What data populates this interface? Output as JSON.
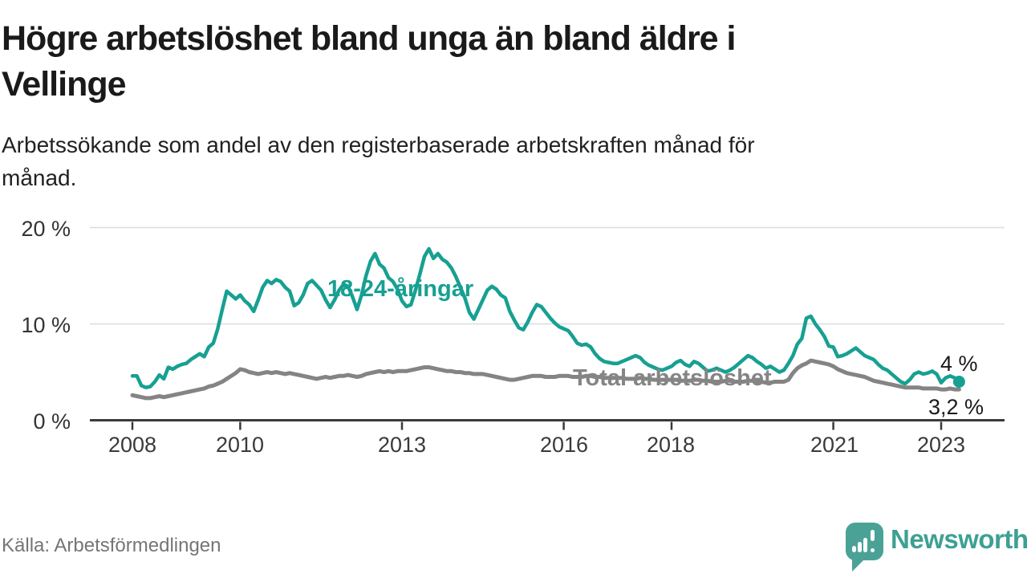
{
  "title": {
    "line1": "Högre arbetslöshet bland unga än bland äldre i",
    "line2": "Vellinge"
  },
  "subtitle": {
    "line1": "Arbetssökande som andel av den registerbaserade arbetskraften månad för",
    "line2": "månad."
  },
  "source": "Källa: Arbetsförmedlingen",
  "logo": {
    "text": "Newsworthy",
    "icon": "speech-bubble-with-bar-chart-and-exclamation"
  },
  "colors": {
    "youth_line": "#17a092",
    "total_line": "#848484",
    "axis": "#3a3a3a",
    "grid": "#dcdcdc",
    "end_label": "#1a1a1a",
    "source_text": "#757575",
    "logo_teal": "#4aa296"
  },
  "chart_data": {
    "type": "line",
    "title": "Högre arbetslöshet bland unga än bland äldre i Vellinge",
    "subtitle": "Arbetssökande som andel av den registerbaserade arbetskraften månad för månad.",
    "x_start": "2008-01",
    "frequency": "monthly",
    "x_end": "2023-05",
    "y_unit": "%",
    "ylim": [
      0,
      21.5
    ],
    "grid": "horizontal",
    "y_ticks": [
      "0 %",
      "10 %",
      "20 %"
    ],
    "y_tick_values": [
      0,
      10,
      20
    ],
    "x_tick_labels": [
      "2008",
      "2010",
      "2013",
      "2016",
      "2018",
      "2021",
      "2023"
    ],
    "x_tick_years": [
      2008,
      2010,
      2013,
      2016,
      2018,
      2021,
      2023
    ],
    "legend_position": "inline-labels",
    "series": [
      {
        "name": "18-24-åringar",
        "color": "#17a092",
        "end_label": "4 %",
        "end_dot": true,
        "values": [
          4.6,
          4.6,
          3.6,
          3.4,
          3.5,
          4.0,
          4.7,
          4.3,
          5.5,
          5.3,
          5.6,
          5.8,
          5.9,
          6.3,
          6.6,
          6.9,
          6.6,
          7.6,
          8.0,
          9.5,
          11.5,
          13.4,
          13.0,
          12.6,
          13.0,
          12.4,
          12.0,
          11.3,
          12.5,
          13.8,
          14.5,
          14.2,
          14.6,
          14.4,
          13.8,
          13.4,
          11.9,
          12.2,
          13.0,
          14.2,
          14.5,
          14.0,
          13.5,
          12.5,
          11.7,
          12.5,
          13.5,
          14.1,
          13.9,
          12.8,
          11.5,
          13.0,
          15.0,
          16.5,
          17.3,
          16.2,
          15.8,
          14.8,
          14.4,
          13.6,
          12.4,
          11.8,
          12.0,
          13.5,
          15.2,
          17.0,
          17.8,
          16.8,
          17.3,
          16.7,
          16.4,
          15.8,
          14.9,
          13.8,
          12.7,
          11.2,
          10.5,
          11.5,
          12.5,
          13.5,
          13.9,
          13.6,
          13.0,
          12.7,
          11.3,
          10.4,
          9.6,
          9.4,
          10.2,
          11.2,
          12.0,
          11.8,
          11.2,
          10.6,
          10.1,
          9.7,
          9.5,
          9.3,
          8.7,
          8.0,
          7.8,
          7.9,
          7.6,
          6.9,
          6.4,
          6.1,
          6.0,
          5.9,
          5.9,
          6.1,
          6.3,
          6.5,
          6.7,
          6.5,
          6.0,
          5.7,
          5.5,
          5.3,
          5.2,
          5.4,
          5.6,
          6.0,
          6.2,
          5.8,
          5.6,
          6.1,
          5.9,
          5.5,
          5.1,
          5.2,
          5.4,
          5.2,
          5.0,
          5.2,
          5.5,
          5.9,
          6.3,
          6.7,
          6.5,
          6.1,
          5.8,
          5.4,
          5.6,
          5.3,
          5.0,
          5.2,
          5.9,
          6.7,
          7.9,
          8.5,
          10.6,
          10.8,
          10.0,
          9.4,
          8.7,
          7.7,
          7.6,
          6.6,
          6.7,
          6.9,
          7.2,
          7.5,
          7.1,
          6.7,
          6.5,
          6.3,
          5.8,
          5.4,
          5.2,
          4.8,
          4.4,
          4.0,
          3.8,
          4.2,
          4.8,
          5.0,
          4.8,
          4.9,
          5.1,
          4.8,
          3.9,
          4.4,
          4.6,
          4.4,
          4.0
        ]
      },
      {
        "name": "Total arbetslöshet",
        "color": "#848484",
        "end_label": "3,2 %",
        "end_dot": false,
        "values": [
          2.6,
          2.5,
          2.4,
          2.3,
          2.3,
          2.4,
          2.5,
          2.4,
          2.5,
          2.6,
          2.7,
          2.8,
          2.9,
          3.0,
          3.1,
          3.2,
          3.3,
          3.5,
          3.6,
          3.8,
          4.0,
          4.3,
          4.6,
          4.9,
          5.3,
          5.2,
          5.0,
          4.9,
          4.8,
          4.9,
          5.0,
          4.9,
          5.0,
          4.9,
          4.8,
          4.9,
          4.8,
          4.7,
          4.6,
          4.5,
          4.4,
          4.3,
          4.4,
          4.5,
          4.4,
          4.5,
          4.6,
          4.6,
          4.7,
          4.6,
          4.5,
          4.6,
          4.8,
          4.9,
          5.0,
          5.1,
          5.0,
          5.1,
          5.0,
          5.1,
          5.1,
          5.1,
          5.2,
          5.3,
          5.4,
          5.5,
          5.5,
          5.4,
          5.3,
          5.2,
          5.1,
          5.1,
          5.0,
          5.0,
          4.9,
          4.9,
          4.8,
          4.8,
          4.8,
          4.7,
          4.6,
          4.5,
          4.4,
          4.3,
          4.2,
          4.2,
          4.3,
          4.4,
          4.5,
          4.6,
          4.6,
          4.6,
          4.5,
          4.5,
          4.5,
          4.6,
          4.6,
          4.6,
          4.5,
          4.5,
          4.5,
          4.6,
          4.6,
          4.5,
          4.5,
          4.4,
          4.4,
          4.4,
          4.4,
          4.4,
          4.3,
          4.3,
          4.3,
          4.4,
          4.3,
          4.3,
          4.2,
          4.2,
          4.2,
          4.2,
          4.2,
          4.2,
          4.1,
          4.1,
          4.1,
          4.2,
          4.2,
          4.1,
          4.1,
          4.0,
          4.0,
          4.0,
          4.1,
          4.1,
          4.0,
          4.0,
          4.0,
          4.1,
          4.1,
          4.0,
          4.0,
          3.9,
          3.9,
          4.0,
          4.0,
          4.0,
          4.2,
          4.9,
          5.4,
          5.7,
          5.9,
          6.2,
          6.1,
          6.0,
          5.9,
          5.8,
          5.6,
          5.3,
          5.1,
          4.9,
          4.8,
          4.7,
          4.6,
          4.5,
          4.3,
          4.1,
          4.0,
          3.9,
          3.8,
          3.7,
          3.6,
          3.5,
          3.4,
          3.4,
          3.4,
          3.4,
          3.3,
          3.3,
          3.3,
          3.3,
          3.2,
          3.2,
          3.3,
          3.2,
          3.2
        ]
      }
    ]
  }
}
